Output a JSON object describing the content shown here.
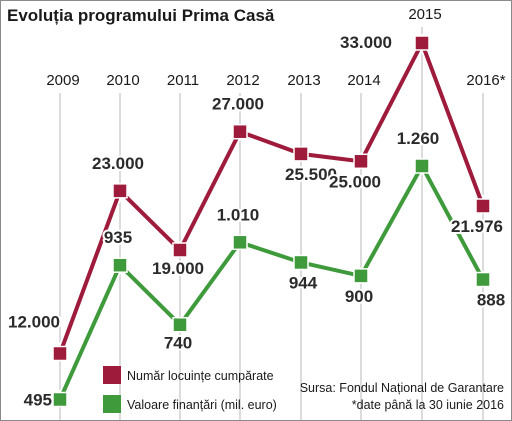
{
  "chart_data": {
    "type": "line",
    "title": "Evoluția programului Prima Casă",
    "categories": [
      "2009",
      "2010",
      "2011",
      "2012",
      "2013",
      "2014",
      "2015",
      "2016*"
    ],
    "series": [
      {
        "name": "Număr locuințe cumpărate",
        "color": "#9e1b3c",
        "values": [
          12000,
          23000,
          19000,
          27000,
          25500,
          25000,
          33000,
          21976
        ],
        "labels": [
          "12.000",
          "23.000",
          "19.000",
          "27.000",
          "25.500",
          "25.000",
          "33.000",
          "21.976"
        ]
      },
      {
        "name": "Valoare finanțări (mil. euro)",
        "color": "#3f9a3c",
        "values": [
          495,
          935,
          740,
          1010,
          944,
          900,
          1260,
          888
        ],
        "labels": [
          "495",
          "935",
          "740",
          "1.010",
          "944",
          "900",
          "1.260",
          "888"
        ]
      }
    ],
    "annotations": [
      "Sursa: Fondul Național de Garantare",
      "*date până la 30 iunie 2016"
    ],
    "grid": false,
    "legend_position": "bottom-left"
  },
  "colors": {
    "background": "#ffffff",
    "series_1": "#9e1b3c",
    "series_2": "#3f9a3c",
    "line_outline": "#ffffff"
  }
}
